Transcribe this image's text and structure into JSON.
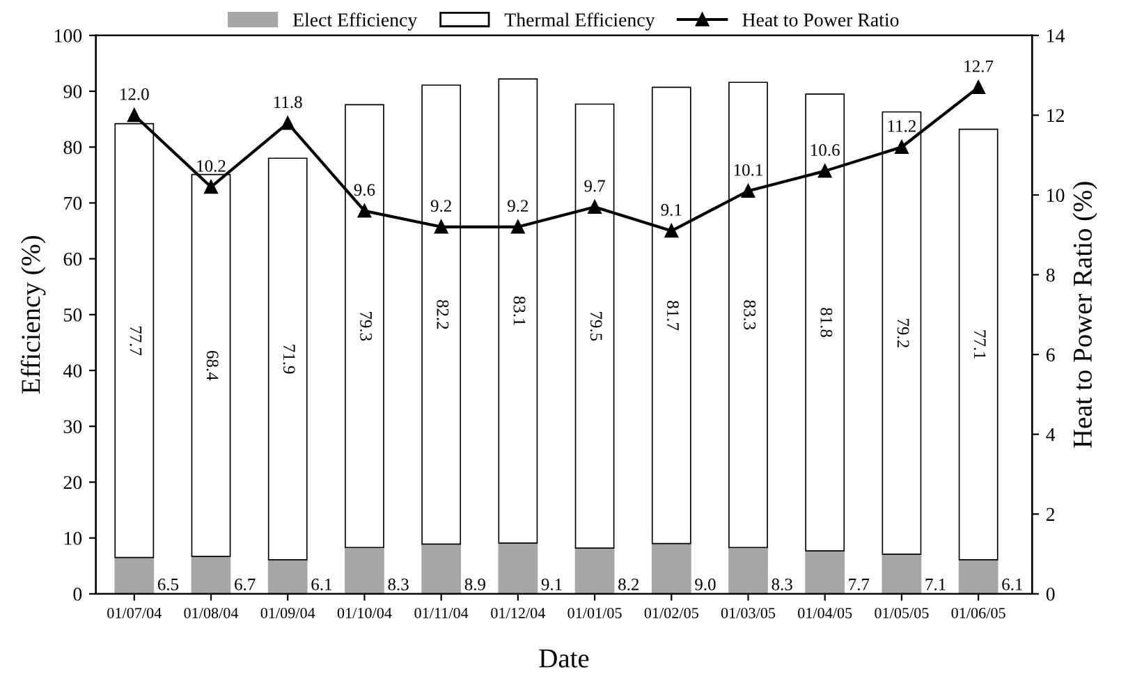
{
  "chart_data": {
    "type": "bar",
    "stacked": true,
    "xlabel": "Date",
    "ylabel": "Efficiency (%)",
    "y2label": "Heat to Power Ratio (%)",
    "categories": [
      "01/07/04",
      "01/08/04",
      "01/09/04",
      "01/10/04",
      "01/11/04",
      "01/12/04",
      "01/01/05",
      "01/02/05",
      "01/03/05",
      "01/04/05",
      "01/05/05",
      "01/06/05"
    ],
    "series": [
      {
        "name": "Elect Efficiency",
        "color": "#a6a6a6",
        "values": [
          6.5,
          6.7,
          6.1,
          8.3,
          8.9,
          9.1,
          8.2,
          9.0,
          8.3,
          7.7,
          7.1,
          6.1
        ],
        "value_labels": [
          "6.5",
          "6.7",
          "6.1",
          "8.3",
          "8.9",
          "9.1",
          "8.2",
          "9.0",
          "8.3",
          "7.7",
          "7.1",
          "6.1"
        ]
      },
      {
        "name": "Thermal Efficiency",
        "color": "#ffffff",
        "values": [
          77.7,
          68.4,
          71.9,
          79.3,
          82.2,
          83.1,
          79.5,
          81.7,
          83.3,
          81.8,
          79.2,
          77.1
        ],
        "value_labels": [
          "77.7",
          "68.4",
          "71.9",
          "79.3",
          "82.2",
          "83.1",
          "79.5",
          "81.7",
          "83.3",
          "81.8",
          "79.2",
          "77.1"
        ]
      },
      {
        "name": "Heat to Power Ratio",
        "type": "line",
        "axis": "y2",
        "color": "#000000",
        "marker": "triangle",
        "line_style": "solid",
        "values": [
          12.0,
          10.2,
          11.8,
          9.6,
          9.2,
          9.2,
          9.7,
          9.1,
          10.1,
          10.6,
          11.2,
          12.7
        ],
        "value_labels": [
          "12.0",
          "10.2",
          "11.8",
          "9.6",
          "9.2",
          "9.2",
          "9.7",
          "9.1",
          "10.1",
          "10.6",
          "11.2",
          "12.7"
        ]
      }
    ],
    "ylim": [
      0,
      100
    ],
    "yticks": [
      0,
      10,
      20,
      30,
      40,
      50,
      60,
      70,
      80,
      90,
      100
    ],
    "y2lim": [
      0,
      14
    ],
    "y2ticks": [
      0,
      2,
      4,
      6,
      8,
      10,
      12,
      14
    ],
    "grid": false,
    "legend": "top"
  }
}
